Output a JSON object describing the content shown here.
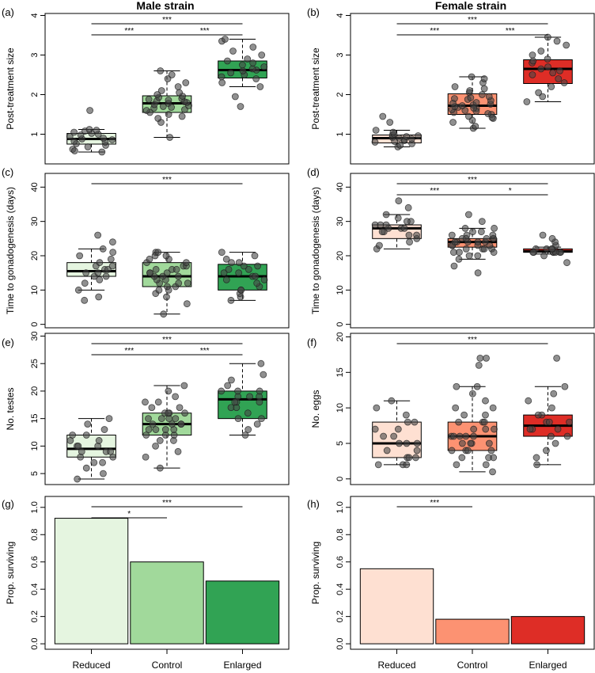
{
  "columns": [
    {
      "title": "Male strain"
    },
    {
      "title": "Female strain"
    }
  ],
  "chart_data": [
    {
      "panel": "(a)",
      "type": "box",
      "ylabel": "Post-treatment size",
      "categories": [
        "Reduced",
        "Control",
        "Enlarged"
      ],
      "ylim": [
        0.25,
        4.05
      ],
      "yticks": [
        1,
        2,
        3,
        4
      ],
      "colors": [
        "#e5f5e0",
        "#a1d99b",
        "#31a354"
      ],
      "boxes": [
        {
          "min": 0.55,
          "q1": 0.75,
          "median": 0.88,
          "q3": 1.02,
          "max": 1.12
        },
        {
          "min": 0.92,
          "q1": 1.55,
          "median": 1.78,
          "q3": 1.97,
          "max": 2.6
        },
        {
          "min": 2.2,
          "q1": 2.42,
          "median": 2.62,
          "q3": 2.85,
          "max": 3.4
        }
      ],
      "points": [
        [
          0.55,
          0.62,
          0.68,
          0.72,
          0.76,
          0.8,
          0.82,
          0.86,
          0.88,
          0.9,
          0.94,
          0.98,
          1.0,
          1.02,
          1.05,
          1.08,
          1.1,
          1.12,
          1.6,
          0.58
        ],
        [
          0.92,
          1.3,
          1.4,
          1.5,
          1.55,
          1.6,
          1.62,
          1.66,
          1.7,
          1.72,
          1.75,
          1.78,
          1.8,
          1.82,
          1.84,
          1.86,
          1.9,
          1.93,
          1.96,
          2.0,
          2.05,
          2.1,
          2.2,
          2.3,
          2.4,
          2.5,
          2.6,
          1.45,
          1.68,
          1.88
        ],
        [
          1.7,
          1.95,
          2.2,
          2.3,
          2.4,
          2.45,
          2.5,
          2.55,
          2.6,
          2.62,
          2.65,
          2.7,
          2.75,
          2.8,
          2.85,
          2.9,
          3.0,
          3.1,
          3.2,
          3.35,
          3.4
        ]
      ],
      "sig": [
        {
          "from": 0,
          "to": 2,
          "level": 1,
          "label": "***"
        },
        {
          "from": 0,
          "to": 1,
          "level": 0,
          "label": "***"
        },
        {
          "from": 1,
          "to": 2,
          "level": 0,
          "label": "***"
        }
      ]
    },
    {
      "panel": "(b)",
      "type": "box",
      "ylabel": "Post-treatment size",
      "categories": [
        "Reduced",
        "Control",
        "Enlarged"
      ],
      "ylim": [
        0.25,
        4.05
      ],
      "yticks": [
        1,
        2,
        3,
        4
      ],
      "colors": [
        "#fee0d2",
        "#fc9272",
        "#de2d26"
      ],
      "boxes": [
        {
          "min": 0.68,
          "q1": 0.78,
          "median": 0.9,
          "q3": 0.98,
          "max": 1.1
        },
        {
          "min": 1.15,
          "q1": 1.5,
          "median": 1.72,
          "q3": 2.02,
          "max": 2.45
        },
        {
          "min": 1.82,
          "q1": 2.28,
          "median": 2.65,
          "q3": 2.88,
          "max": 3.45
        }
      ],
      "points": [
        [
          0.68,
          0.72,
          0.76,
          0.8,
          0.84,
          0.86,
          0.88,
          0.9,
          0.92,
          0.94,
          0.96,
          0.98,
          1.0,
          1.05,
          1.1,
          1.3,
          1.45,
          0.82
        ],
        [
          1.15,
          1.2,
          1.3,
          1.35,
          1.4,
          1.45,
          1.5,
          1.55,
          1.6,
          1.62,
          1.65,
          1.68,
          1.7,
          1.72,
          1.74,
          1.76,
          1.8,
          1.85,
          1.9,
          1.95,
          2.0,
          2.05,
          2.1,
          2.2,
          2.3,
          2.4,
          2.45,
          1.58,
          1.78,
          1.88,
          1.42,
          1.66,
          1.92,
          2.15,
          1.52
        ],
        [
          1.82,
          1.95,
          2.05,
          2.2,
          2.3,
          2.4,
          2.5,
          2.55,
          2.6,
          2.65,
          2.7,
          2.8,
          2.85,
          2.9,
          3.0,
          3.1,
          3.25,
          3.35,
          3.45
        ]
      ],
      "sig": [
        {
          "from": 0,
          "to": 2,
          "level": 1,
          "label": "***"
        },
        {
          "from": 0,
          "to": 1,
          "level": 0,
          "label": "***"
        },
        {
          "from": 1,
          "to": 2,
          "level": 0,
          "label": "***"
        }
      ]
    },
    {
      "panel": "(c)",
      "type": "box",
      "ylabel": "Time to gonadogenesis (days)",
      "categories": [
        "Reduced",
        "Control",
        "Enlarged"
      ],
      "ylim": [
        -1,
        44
      ],
      "yticks": [
        0,
        10,
        20,
        30,
        40
      ],
      "colors": [
        "#e5f5e0",
        "#a1d99b",
        "#31a354"
      ],
      "boxes": [
        {
          "min": 10,
          "q1": 14,
          "median": 15.5,
          "q3": 18,
          "max": 22
        },
        {
          "min": 3,
          "q1": 11,
          "median": 14,
          "q3": 18,
          "max": 21
        },
        {
          "min": 7,
          "q1": 10,
          "median": 14,
          "q3": 17.5,
          "max": 21
        }
      ],
      "points": [
        [
          7,
          8,
          10,
          12,
          13,
          14,
          14,
          15,
          15,
          16,
          16,
          17,
          17,
          18,
          19,
          20,
          21,
          22,
          24,
          26
        ],
        [
          3,
          6,
          8,
          9,
          10,
          10,
          11,
          11,
          12,
          12,
          13,
          13,
          14,
          14,
          14,
          15,
          15,
          15,
          16,
          16,
          17,
          17,
          18,
          18,
          19,
          19,
          20,
          20,
          21,
          21,
          12,
          16
        ],
        [
          7,
          8,
          9,
          10,
          10,
          11,
          12,
          13,
          13,
          14,
          14,
          15,
          15,
          16,
          16,
          17,
          17,
          18,
          18,
          19,
          20,
          21
        ]
      ],
      "sig": [
        {
          "from": 0,
          "to": 2,
          "level": 0,
          "label": "***"
        }
      ]
    },
    {
      "panel": "(d)",
      "type": "box",
      "ylabel": "Time to gonadogenesis (days)",
      "categories": [
        "Reduced",
        "Control",
        "Enlarged"
      ],
      "ylim": [
        -1,
        44
      ],
      "yticks": [
        0,
        10,
        20,
        30,
        40
      ],
      "colors": [
        "#fee0d2",
        "#fc9272",
        "#de2d26"
      ],
      "boxes": [
        {
          "min": 22,
          "q1": 25,
          "median": 28,
          "q3": 29,
          "max": 32
        },
        {
          "min": 19,
          "q1": 22.5,
          "median": 24,
          "q3": 25,
          "max": 28
        },
        {
          "min": 20.5,
          "q1": 21,
          "median": 21.3,
          "q3": 22,
          "max": 22.5
        }
      ],
      "points": [
        [
          22,
          23,
          24,
          25,
          26,
          27,
          27,
          28,
          28,
          28,
          29,
          29,
          30,
          30,
          31,
          32,
          34,
          36,
          26,
          29
        ],
        [
          15,
          17,
          19,
          20,
          20,
          21,
          21,
          22,
          22,
          22,
          23,
          23,
          23,
          24,
          24,
          24,
          24,
          25,
          25,
          25,
          25,
          26,
          26,
          27,
          27,
          28,
          28,
          30,
          32,
          22,
          24,
          23,
          26,
          21,
          25
        ],
        [
          18,
          20,
          21,
          21,
          21,
          21,
          21,
          21,
          22,
          22,
          22,
          23,
          24,
          25,
          26,
          21,
          22
        ]
      ],
      "sig": [
        {
          "from": 0,
          "to": 2,
          "level": 1,
          "label": "***"
        },
        {
          "from": 0,
          "to": 1,
          "level": 0,
          "label": "***"
        },
        {
          "from": 1,
          "to": 2,
          "level": 0,
          "label": "*"
        }
      ]
    },
    {
      "panel": "(e)",
      "type": "box",
      "ylabel": "No. testes",
      "categories": [
        "Reduced",
        "Control",
        "Enlarged"
      ],
      "ylim": [
        3,
        30.5
      ],
      "yticks": [
        5,
        10,
        15,
        20,
        25,
        30
      ],
      "colors": [
        "#e5f5e0",
        "#a1d99b",
        "#31a354"
      ],
      "boxes": [
        {
          "min": 4,
          "q1": 8,
          "median": 9.5,
          "q3": 12,
          "max": 15
        },
        {
          "min": 6,
          "q1": 12,
          "median": 14,
          "q3": 16,
          "max": 21
        },
        {
          "min": 12,
          "q1": 15,
          "median": 18.5,
          "q3": 20,
          "max": 25
        }
      ],
      "points": [
        [
          4,
          5,
          6,
          7,
          8,
          8,
          9,
          9,
          9,
          10,
          10,
          11,
          11,
          12,
          12,
          13,
          14,
          15,
          7,
          10
        ],
        [
          6,
          8,
          9,
          10,
          11,
          11,
          12,
          12,
          12,
          13,
          13,
          13,
          14,
          14,
          14,
          15,
          15,
          15,
          15,
          16,
          16,
          16,
          17,
          17,
          18,
          18,
          19,
          20,
          21,
          14,
          13,
          16
        ],
        [
          12,
          13,
          14,
          15,
          15,
          16,
          17,
          17,
          18,
          18,
          19,
          19,
          19,
          20,
          20,
          20,
          21,
          22,
          23,
          25,
          18
        ]
      ],
      "sig": [
        {
          "from": 0,
          "to": 2,
          "level": 1,
          "label": "***"
        },
        {
          "from": 0,
          "to": 1,
          "level": 0,
          "label": "***"
        },
        {
          "from": 1,
          "to": 2,
          "level": 0,
          "label": "***"
        }
      ]
    },
    {
      "panel": "(f)",
      "type": "box",
      "ylabel": "No. eggs",
      "categories": [
        "Reduced",
        "Control",
        "Enlarged"
      ],
      "ylim": [
        -0.8,
        20.5
      ],
      "yticks": [
        0,
        5,
        10,
        15,
        20
      ],
      "colors": [
        "#fee0d2",
        "#fc9272",
        "#de2d26"
      ],
      "boxes": [
        {
          "min": 2,
          "q1": 3,
          "median": 5,
          "q3": 8,
          "max": 11
        },
        {
          "min": 1,
          "q1": 4,
          "median": 6,
          "q3": 8,
          "max": 13
        },
        {
          "min": 2,
          "q1": 6,
          "median": 7.5,
          "q3": 9,
          "max": 13
        }
      ],
      "points": [
        [
          2,
          2,
          3,
          3,
          3,
          4,
          4,
          5,
          5,
          5,
          6,
          7,
          7,
          8,
          8,
          9,
          10,
          11,
          2,
          6
        ],
        [
          1,
          2,
          2,
          3,
          3,
          3,
          4,
          4,
          4,
          5,
          5,
          5,
          6,
          6,
          6,
          6,
          7,
          7,
          7,
          8,
          8,
          8,
          9,
          9,
          10,
          10,
          11,
          12,
          13,
          13,
          16,
          17,
          17,
          5,
          4,
          6
        ],
        [
          2,
          4,
          5,
          6,
          6,
          7,
          7,
          7,
          8,
          8,
          8,
          9,
          9,
          10,
          11,
          12,
          13,
          17,
          3
        ]
      ],
      "sig": [
        {
          "from": 0,
          "to": 2,
          "level": 0,
          "label": "***"
        }
      ]
    },
    {
      "panel": "(g)",
      "type": "bar",
      "ylabel": "Prop. surviving",
      "categories": [
        "Reduced",
        "Control",
        "Enlarged"
      ],
      "ylim": [
        -0.04,
        1.08
      ],
      "yticks": [
        0.0,
        0.2,
        0.4,
        0.6,
        0.8,
        1.0
      ],
      "ytick_labels": [
        "0.0",
        "0.2",
        "0.4",
        "0.6",
        "0.8",
        "1.0"
      ],
      "colors": [
        "#e5f5e0",
        "#a1d99b",
        "#31a354"
      ],
      "values": [
        0.92,
        0.6,
        0.46
      ],
      "sig": [
        {
          "from": 0,
          "to": 2,
          "level": 1,
          "label": "***"
        },
        {
          "from": 0,
          "to": 1,
          "level": 0,
          "label": "*"
        }
      ]
    },
    {
      "panel": "(h)",
      "type": "bar",
      "ylabel": "Prop. surviving",
      "categories": [
        "Reduced",
        "Control",
        "Enlarged"
      ],
      "ylim": [
        -0.04,
        1.08
      ],
      "yticks": [
        0.0,
        0.2,
        0.4,
        0.6,
        0.8,
        1.0
      ],
      "ytick_labels": [
        "0.0",
        "0.2",
        "0.4",
        "0.6",
        "0.8",
        "1.0"
      ],
      "colors": [
        "#fee0d2",
        "#fc9272",
        "#de2d26"
      ],
      "values": [
        0.55,
        0.18,
        0.2
      ],
      "sig": [
        {
          "from": 0,
          "to": 1,
          "level": 0,
          "label": "***"
        }
      ]
    }
  ]
}
